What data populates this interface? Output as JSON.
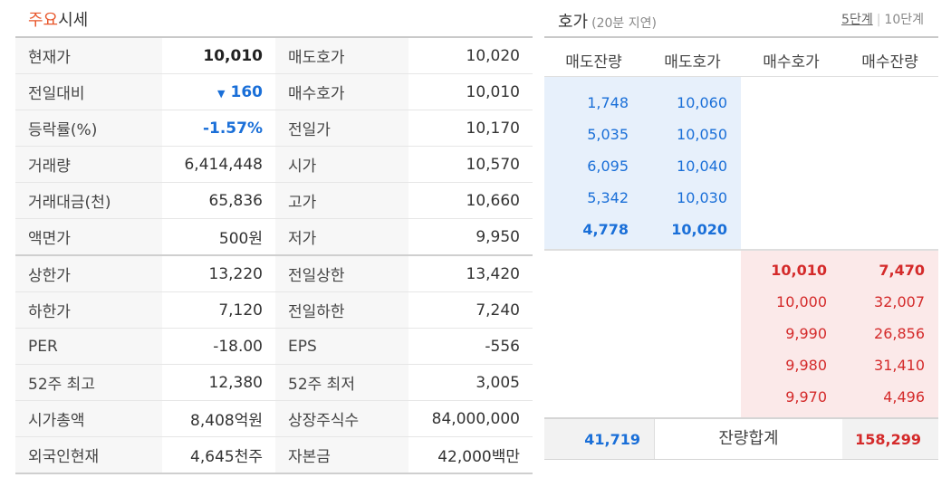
{
  "section_title": {
    "highlight": "주요",
    "rest": "시세"
  },
  "market_rows": [
    {
      "l1": "현재가",
      "v1": "10,010",
      "l2": "매도호가",
      "v2": "10,020"
    },
    {
      "l1": "전일대비",
      "v1": "160",
      "l2": "매수호가",
      "v2": "10,010"
    },
    {
      "l1": "등락률(%)",
      "v1": "-1.57%",
      "l2": "전일가",
      "v2": "10,170"
    },
    {
      "l1": "거래량",
      "v1": "6,414,448",
      "l2": "시가",
      "v2": "10,570"
    },
    {
      "l1": "거래대금(천)",
      "v1": "65,836",
      "l2": "고가",
      "v2": "10,660"
    },
    {
      "l1": "액면가",
      "v1": "500원",
      "l2": "저가",
      "v2": "9,950"
    },
    {
      "l1": "상한가",
      "v1": "13,220",
      "l2": "전일상한",
      "v2": "13,420"
    },
    {
      "l1": "하한가",
      "v1": "7,120",
      "l2": "전일하한",
      "v2": "7,240"
    },
    {
      "l1": "PER",
      "v1": "-18.00",
      "l2": "EPS",
      "v2": "-556"
    },
    {
      "l1": "52주 최고",
      "v1": "12,380",
      "l2": "52주 최저",
      "v2": "3,005"
    },
    {
      "l1": "시가총액",
      "v1": "8,408억원",
      "l2": "상장주식수",
      "v2": "84,000,000"
    },
    {
      "l1": "외국인현재",
      "v1": "4,645천주",
      "l2": "자본금",
      "v2": "42,000백만"
    }
  ],
  "change_arrow": "▼",
  "orderbook": {
    "title": "호가",
    "delay_note": "(20분 지연)",
    "step5": "5단계",
    "step10": "10단계",
    "step_sep": "|",
    "headers": [
      "매도잔량",
      "매도호가",
      "매수호가",
      "매수잔량"
    ],
    "asks": [
      {
        "qty": "1,748",
        "price": "10,060"
      },
      {
        "qty": "5,035",
        "price": "10,050"
      },
      {
        "qty": "6,095",
        "price": "10,040"
      },
      {
        "qty": "5,342",
        "price": "10,030"
      },
      {
        "qty": "4,778",
        "price": "10,020"
      }
    ],
    "bids": [
      {
        "price": "10,010",
        "qty": "7,470"
      },
      {
        "price": "10,000",
        "qty": "32,007"
      },
      {
        "price": "9,990",
        "qty": "26,856"
      },
      {
        "price": "9,980",
        "qty": "31,410"
      },
      {
        "price": "9,970",
        "qty": "4,496"
      }
    ],
    "total_ask": "41,719",
    "total_label": "잔량합계",
    "total_bid": "158,299"
  },
  "colors": {
    "accent": "#e8562a",
    "ask": "#1a6fd8",
    "bid": "#d42a2a",
    "ask_bg": "#e7f0fb",
    "bid_bg": "#fbe9e9"
  }
}
